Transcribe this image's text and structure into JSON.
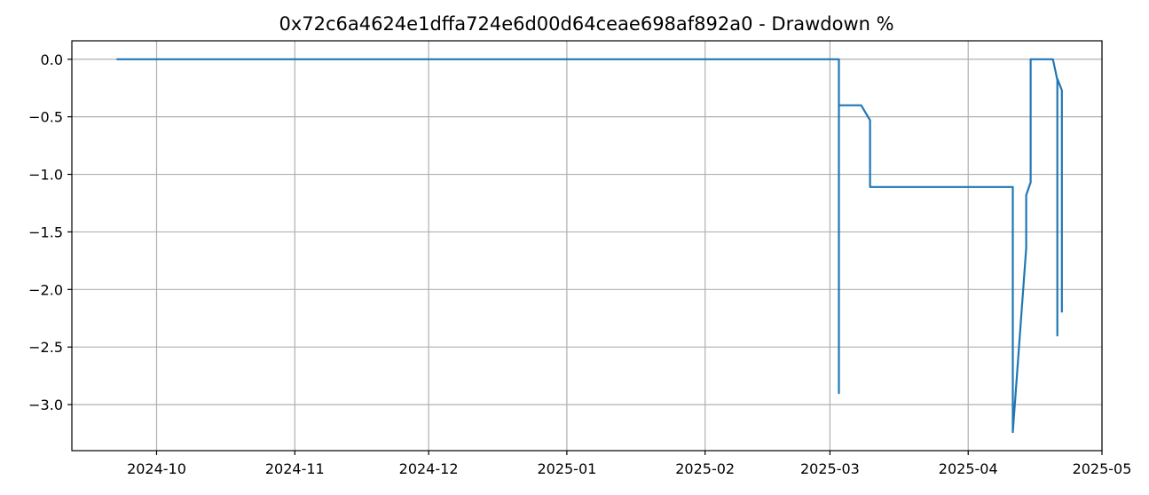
{
  "chart_data": {
    "type": "line",
    "title": "0x72c6a4624e1dffa724e6d00d64ceae698af892a0 - Drawdown %",
    "xlabel": "",
    "ylabel": "",
    "xlim": [
      "2024-09-12",
      "2025-05-01"
    ],
    "ylim": [
      -3.4,
      0.16
    ],
    "grid": true,
    "x_ticks": [
      "2024-10",
      "2024-11",
      "2024-12",
      "2025-01",
      "2025-02",
      "2025-03",
      "2025-04",
      "2025-05"
    ],
    "y_ticks": [
      0.0,
      -0.5,
      -1.0,
      -1.5,
      -2.0,
      -2.5,
      -3.0
    ],
    "y_tick_labels": [
      "0.0",
      "−0.5",
      "−1.0",
      "−1.5",
      "−2.0",
      "−2.5",
      "−3.0"
    ],
    "color": "#1f77b4",
    "series": [
      {
        "points": [
          [
            "2024-09-22",
            0.0
          ],
          [
            "2025-03-03",
            0.0
          ],
          [
            "2025-03-03",
            -2.9
          ],
          [
            "2025-03-03",
            -0.4
          ],
          [
            "2025-03-08",
            -0.4
          ],
          [
            "2025-03-10",
            -0.53
          ],
          [
            "2025-03-10",
            -1.11
          ],
          [
            "2025-04-11",
            -1.11
          ],
          [
            "2025-04-11",
            -2.0
          ],
          [
            "2025-04-11",
            -2.09
          ],
          [
            "2025-04-11",
            -3.24
          ],
          [
            "2025-04-14",
            -1.64
          ],
          [
            "2025-04-14",
            -1.18
          ],
          [
            "2025-04-15",
            -1.07
          ],
          [
            "2025-04-15",
            -0.53
          ],
          [
            "2025-04-15",
            0.0
          ],
          [
            "2025-04-20",
            0.0
          ],
          [
            "2025-04-21",
            -0.18
          ],
          [
            "2025-04-21",
            -2.4
          ],
          [
            "2025-04-21",
            -0.17
          ],
          [
            "2025-04-22",
            -0.27
          ],
          [
            "2025-04-22",
            -2.2
          ]
        ]
      }
    ]
  }
}
